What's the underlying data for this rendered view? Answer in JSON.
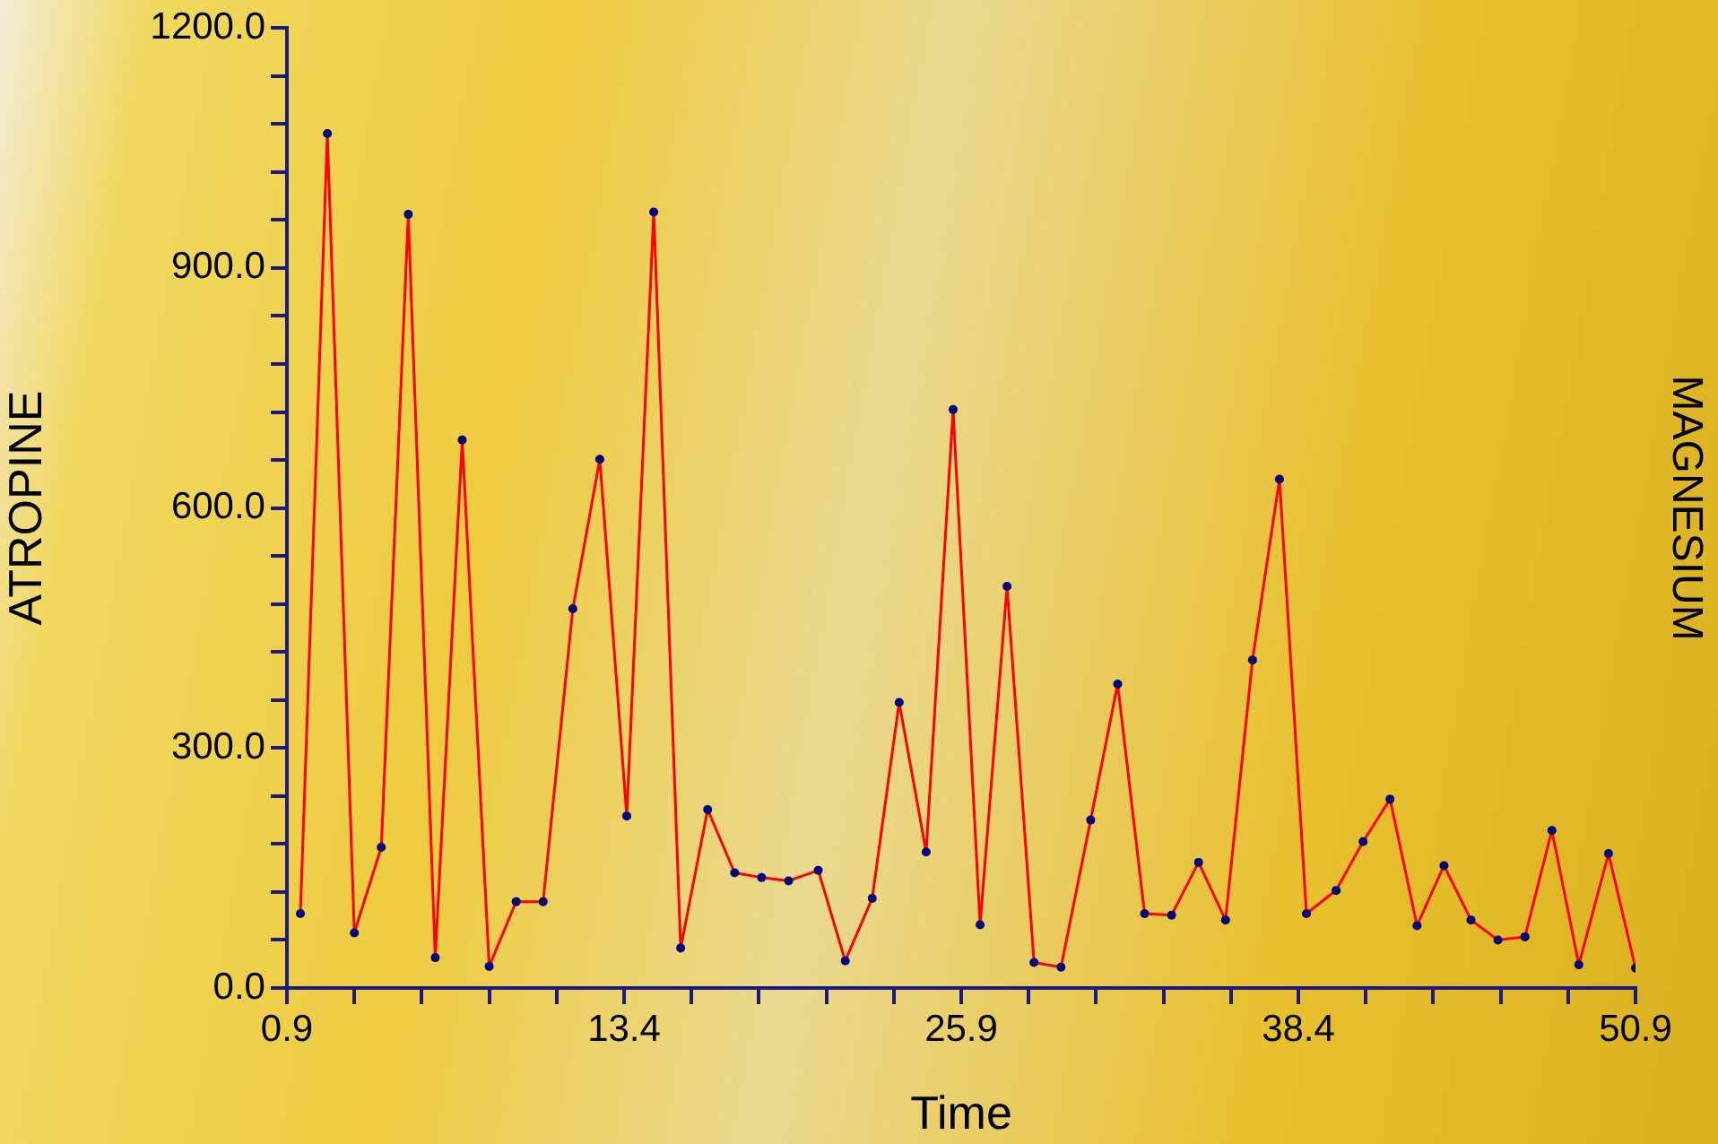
{
  "chart_data": {
    "type": "line",
    "xlabel": "Time",
    "ylabel": "ATROPINE",
    "y2label": "MAGNESIUM",
    "x": [
      1.4,
      2.4,
      3.4,
      4.4,
      5.4,
      6.4,
      7.4,
      8.4,
      9.4,
      10.4,
      11.5,
      12.5,
      13.5,
      14.5,
      15.5,
      16.5,
      17.5,
      18.5,
      19.5,
      20.6,
      21.6,
      22.6,
      23.6,
      24.6,
      25.6,
      26.6,
      27.6,
      28.6,
      29.6,
      30.7,
      31.7,
      32.7,
      33.7,
      34.7,
      35.7,
      36.7,
      37.7,
      38.7,
      39.8,
      40.8,
      41.8,
      42.8,
      43.8,
      44.8,
      45.8,
      46.8,
      47.8,
      48.8,
      49.9,
      50.9
    ],
    "series": [
      {
        "color": "#ff0000",
        "values": [
          93,
          1068,
          69,
          176,
          967,
          38,
          685,
          27,
          108,
          108,
          474,
          661,
          215,
          970,
          50,
          223,
          144,
          138,
          134,
          147,
          34,
          112,
          357,
          170,
          723,
          79,
          502,
          32,
          26,
          210,
          380,
          93,
          91,
          157,
          85,
          410,
          636,
          93,
          122,
          183,
          236,
          78,
          153,
          85,
          60,
          64,
          197,
          29,
          168,
          25
        ],
        "colors": [
          "#000080",
          "#000080",
          "#000080",
          "#000080",
          "#000080",
          "#000080",
          "#000080",
          "#000080",
          "#000080",
          "#000080",
          "#000080",
          "#000080",
          "#000080",
          "#000080",
          "#000080",
          "#000080",
          "#000080",
          "#000080",
          "#000080",
          "#000080",
          "#000080",
          "#000080",
          "#000080",
          "#000080",
          "#000080",
          "#000080",
          "#000080",
          "#000080",
          "#000080",
          "#000080",
          "#000080",
          "#000080",
          "#000080",
          "#000080",
          "#000080",
          "#000080",
          "#000080",
          "#000080",
          "#000080",
          "#000080",
          "#000080",
          "#000080",
          "#000080",
          "#000080",
          "#000080",
          "#000080",
          "#000080",
          "#000080",
          "#000080",
          "#000080"
        ]
      }
    ],
    "xlim": [
      0.9,
      50.9
    ],
    "xticks": [
      0.9,
      {
        "value": 3.4,
        "label": null
      },
      {
        "value": 5.9,
        "label": null
      },
      {
        "value": 8.4,
        "label": null
      },
      {
        "value": 10.9,
        "label": null
      },
      13.4,
      {
        "value": 15.9,
        "label": null
      },
      {
        "value": 18.4,
        "label": null
      },
      {
        "value": 20.9,
        "label": null
      },
      {
        "value": 23.4,
        "label": null
      },
      25.9,
      {
        "value": 28.4,
        "label": null
      },
      {
        "value": 30.9,
        "label": null
      },
      {
        "value": 33.4,
        "label": null
      },
      {
        "value": 35.9,
        "label": null
      },
      38.4,
      {
        "value": 40.9,
        "label": null
      },
      {
        "value": 43.4,
        "label": null
      },
      {
        "value": 45.9,
        "label": null
      },
      {
        "value": 48.4,
        "label": null
      },
      50.9
    ],
    "ylim": [
      0,
      1200
    ],
    "yticks": [
      {
        "value": 0,
        "label": "0.0"
      },
      {
        "value": 60,
        "label": null
      },
      {
        "value": 120,
        "label": null
      },
      {
        "value": 180,
        "label": null
      },
      {
        "value": 240,
        "label": null
      },
      {
        "value": 300,
        "label": "300.0"
      },
      {
        "value": 360,
        "label": null
      },
      {
        "value": 420,
        "label": null
      },
      {
        "value": 480,
        "label": null
      },
      {
        "value": 540,
        "label": null
      },
      {
        "value": 600,
        "label": "600.0"
      },
      {
        "value": 660,
        "label": null
      },
      {
        "value": 720,
        "label": null
      },
      {
        "value": 780,
        "label": null
      },
      {
        "value": 840,
        "label": null
      },
      {
        "value": 900,
        "label": "900.0"
      },
      {
        "value": 960,
        "label": null
      },
      {
        "value": 1020,
        "label": null
      },
      {
        "value": 1080,
        "label": null
      },
      {
        "value": 1140,
        "label": null
      },
      {
        "value": 1200,
        "label": "1200.0"
      }
    ],
    "grid": false,
    "legend": false,
    "marker": "circle",
    "line_style": "solid"
  }
}
